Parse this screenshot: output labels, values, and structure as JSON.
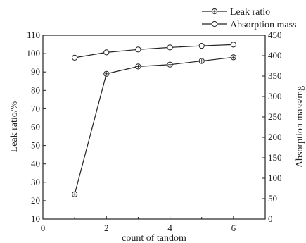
{
  "chart_data": {
    "type": "line",
    "x": [
      1,
      2,
      3,
      4,
      5,
      6
    ],
    "xlabel": "count of tandom",
    "xlim": [
      0,
      7
    ],
    "xticks": [
      "0",
      "2",
      "4",
      "6"
    ],
    "ylabel": "Leak ratio/%",
    "ylim": [
      10,
      110
    ],
    "yticks": [
      "10",
      "20",
      "30",
      "40",
      "50",
      "60",
      "70",
      "80",
      "90",
      "100",
      "110"
    ],
    "y2label": "Absorption mass/mg",
    "y2lim": [
      0,
      450
    ],
    "y2ticks": [
      "0",
      "50",
      "100",
      "150",
      "200",
      "250",
      "300",
      "350",
      "400",
      "450"
    ],
    "legend_position": "top-right",
    "series": [
      {
        "name": "Leak ratio",
        "axis": "left",
        "marker": "circle-cross",
        "values": [
          23.5,
          89,
          93,
          94,
          96,
          98
        ]
      },
      {
        "name": "Absorption mass",
        "axis": "right",
        "marker": "circle-open",
        "values": [
          395,
          408,
          415,
          420,
          424,
          427
        ]
      }
    ],
    "colors": {
      "line": "#222222",
      "marker_fill": "#ffffff",
      "axis": "#222222"
    }
  }
}
